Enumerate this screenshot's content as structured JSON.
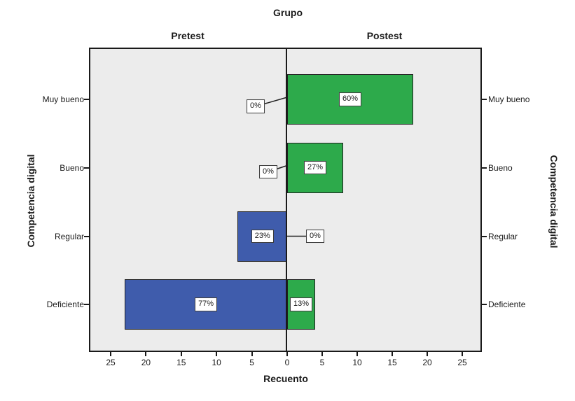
{
  "chart_data": {
    "type": "bar",
    "variant": "population-pyramid",
    "title": "Grupo",
    "panels": {
      "left": "Pretest",
      "right": "Postest"
    },
    "categories": [
      "Muy bueno",
      "Bueno",
      "Regular",
      "Deficiente"
    ],
    "series": [
      {
        "name": "Pretest",
        "side": "left",
        "color": "#3f5cac",
        "counts": [
          0,
          0,
          7,
          23
        ],
        "labels": [
          "0%",
          "0%",
          "23%",
          "77%"
        ]
      },
      {
        "name": "Postest",
        "side": "right",
        "color": "#2daa4b",
        "counts": [
          18,
          8,
          0,
          4
        ],
        "labels": [
          "60%",
          "27%",
          "0%",
          "13%"
        ]
      }
    ],
    "xlabel": "Recuento",
    "ylabel": "Competencia digital",
    "x_ticks": [
      25,
      20,
      15,
      10,
      5,
      0,
      5,
      10,
      15,
      20,
      25
    ],
    "x_range_each_side": [
      0,
      28
    ],
    "grid": false,
    "legend": "none",
    "plot_bg": "#ececec",
    "axis_color": "#1a1a1a",
    "bar_border_color": "#1f1f1f",
    "label_box": {
      "bg": "#ffffff",
      "border": "#3a3a3a"
    }
  }
}
